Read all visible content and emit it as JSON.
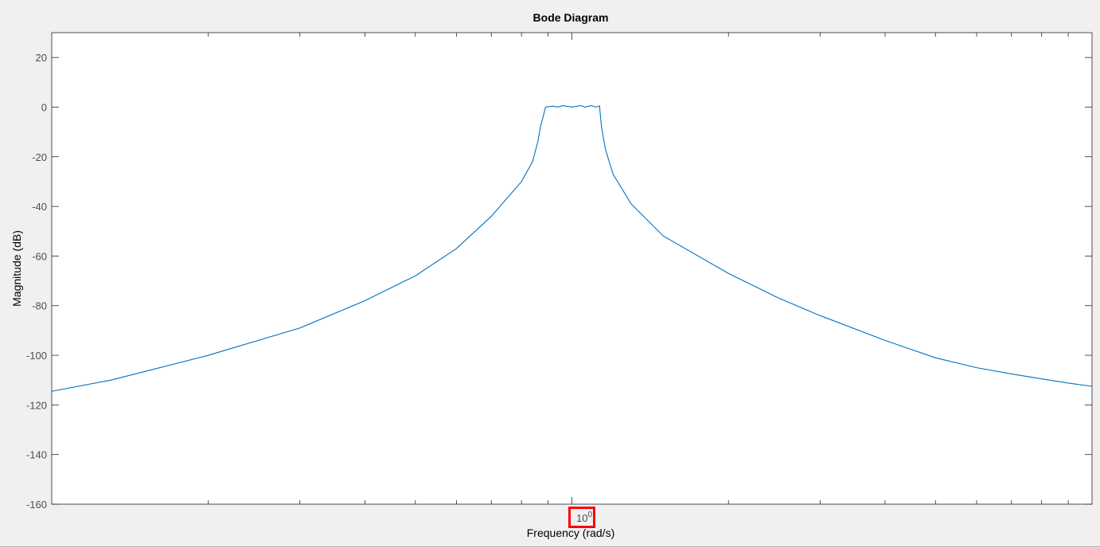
{
  "chart_data": {
    "type": "line",
    "title": "Bode Diagram",
    "xlabel": "Frequency  (rad/s)",
    "ylabel": "Magnitude (dB)",
    "xscale": "log",
    "xlim": [
      0.1,
      10
    ],
    "ylim": [
      -160,
      30
    ],
    "grid": false,
    "yticks": [
      20,
      0,
      -20,
      -40,
      -60,
      -80,
      -100,
      -120,
      -140,
      -160
    ],
    "ytick_labels": [
      "20",
      "0",
      "-20",
      "-40",
      "-60",
      "-80",
      "-100",
      "-120",
      "-140",
      "-160"
    ],
    "xtick_label": {
      "base": "10",
      "exp": "0",
      "value": 1
    },
    "minor_xticks": [
      0.2,
      0.3,
      0.4,
      0.5,
      0.6,
      0.7,
      0.8,
      0.9,
      2,
      3,
      4,
      5,
      6,
      7,
      8,
      9
    ],
    "series": [
      {
        "color": "#0072bd",
        "x": [
          0.1,
          0.13,
          0.2,
          0.3,
          0.4,
          0.5,
          0.6,
          0.7,
          0.8,
          0.84,
          0.86,
          0.87,
          0.89,
          0.92,
          0.94,
          0.96,
          1.0,
          1.04,
          1.06,
          1.09,
          1.11,
          1.13,
          1.14,
          1.16,
          1.2,
          1.3,
          1.5,
          2,
          2.5,
          3,
          4,
          5,
          6,
          7,
          8,
          9,
          10
        ],
        "y": [
          -114.5,
          -110,
          -100,
          -89,
          -78,
          -68,
          -57,
          -44,
          -30,
          -22,
          -14,
          -8,
          0,
          0.4,
          0,
          0.6,
          0,
          0.6,
          0,
          0.6,
          0,
          0.5,
          -8,
          -17,
          -27,
          -39,
          -52,
          -67,
          -77,
          -84,
          -94,
          -101,
          -105,
          -107.5,
          -109.5,
          -111.2,
          -112.5
        ]
      }
    ],
    "highlight": {
      "target": "xtick-1",
      "color": "#ff0000"
    }
  }
}
